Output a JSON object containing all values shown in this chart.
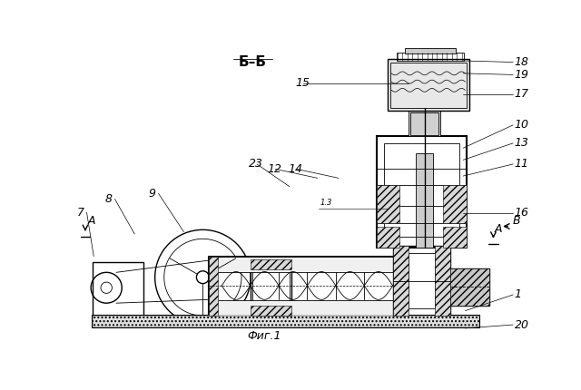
{
  "bg_color": "#ffffff",
  "title": "Б–Б",
  "fig_label": "Фиг.1",
  "lw_thin": 0.6,
  "lw_med": 1.0,
  "lw_thick": 1.5,
  "right_labels": [
    [
      628,
      22,
      555,
      20,
      "18"
    ],
    [
      628,
      40,
      555,
      38,
      "19"
    ],
    [
      628,
      68,
      555,
      68,
      "17"
    ],
    [
      628,
      112,
      555,
      145,
      "10"
    ],
    [
      628,
      138,
      555,
      162,
      "13"
    ],
    [
      628,
      168,
      555,
      185,
      "11"
    ],
    [
      628,
      238,
      555,
      238,
      "16"
    ],
    [
      628,
      355,
      558,
      378,
      "1"
    ],
    [
      628,
      398,
      558,
      403,
      "20"
    ]
  ],
  "left_labels": [
    [
      6,
      237,
      30,
      300,
      "7"
    ],
    [
      46,
      218,
      88,
      268,
      "8"
    ],
    [
      108,
      210,
      158,
      265,
      "9"
    ]
  ],
  "top_labels": [
    [
      316,
      52,
      478,
      52,
      "15"
    ],
    [
      250,
      168,
      308,
      200,
      "23"
    ],
    [
      276,
      175,
      348,
      188,
      "12"
    ],
    [
      306,
      175,
      378,
      188,
      "14"
    ]
  ]
}
